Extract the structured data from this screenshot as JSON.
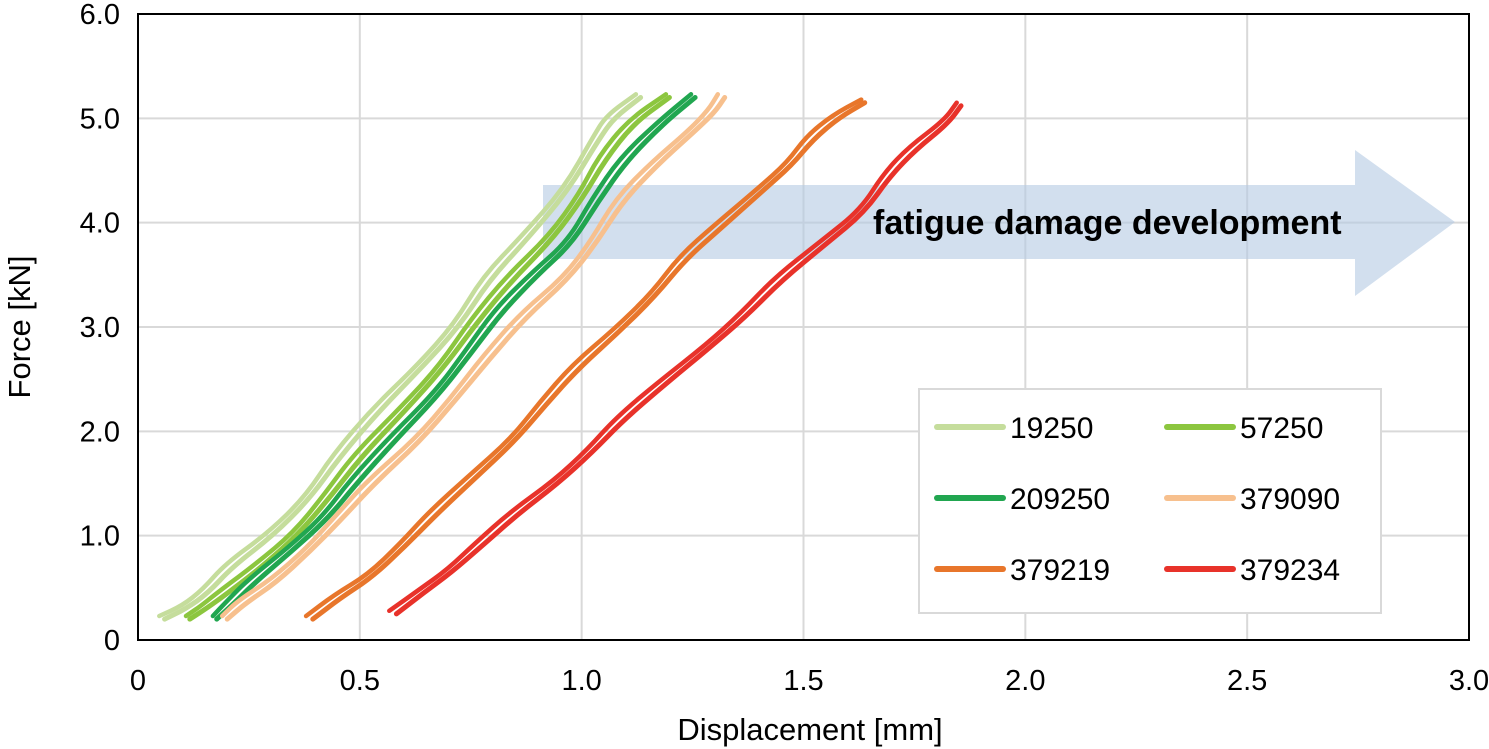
{
  "chart_data": {
    "type": "line",
    "xlabel": "Displacement [mm]",
    "ylabel": "Force [kN]",
    "xlim": [
      0,
      3.0
    ],
    "ylim": [
      0,
      6.0
    ],
    "xticks": [
      "0",
      "0.5",
      "1.0",
      "1.5",
      "2.0",
      "2.5",
      "3.0"
    ],
    "yticks": [
      "0",
      "1.0",
      "2.0",
      "3.0",
      "4.0",
      "5.0",
      "6.0"
    ],
    "grid": true,
    "legend_position": "bottom-right",
    "annotation": "fatigue damage development",
    "series": [
      {
        "name": "19250",
        "color": "#c5dd9c",
        "x": [
          0.06,
          0.1,
          0.16,
          0.22,
          0.3,
          0.38,
          0.46,
          0.55,
          0.63,
          0.72,
          0.8,
          0.88,
          0.96,
          1.04,
          1.08,
          1.13
        ],
        "y": [
          0.2,
          0.3,
          0.45,
          0.7,
          1.0,
          1.35,
          1.75,
          2.2,
          2.6,
          3.0,
          3.45,
          3.85,
          4.3,
          4.8,
          5.0,
          5.2
        ]
      },
      {
        "name": "57250",
        "color": "#8cc63f",
        "x": [
          0.11,
          0.15,
          0.21,
          0.28,
          0.35,
          0.43,
          0.51,
          0.6,
          0.68,
          0.77,
          0.85,
          0.93,
          1.0,
          1.06,
          1.12,
          1.19
        ],
        "y": [
          0.2,
          0.3,
          0.45,
          0.7,
          1.0,
          1.35,
          1.75,
          2.2,
          2.6,
          3.05,
          3.45,
          3.85,
          4.25,
          4.6,
          4.95,
          5.2
        ]
      },
      {
        "name": "209250",
        "color": "#21a650",
        "x": [
          0.17,
          0.22,
          0.27,
          0.34,
          0.42,
          0.5,
          0.58,
          0.67,
          0.75,
          0.83,
          0.9,
          0.97,
          1.04,
          1.11,
          1.18,
          1.25
        ],
        "y": [
          0.2,
          0.35,
          0.55,
          0.85,
          1.15,
          1.5,
          1.9,
          2.35,
          2.75,
          3.15,
          3.5,
          3.8,
          4.2,
          4.6,
          4.95,
          5.2
        ]
      },
      {
        "name": "379090",
        "color": "#f7c08e",
        "x": [
          0.2,
          0.25,
          0.31,
          0.38,
          0.46,
          0.54,
          0.63,
          0.71,
          0.8,
          0.88,
          0.96,
          1.03,
          1.1,
          1.17,
          1.24,
          1.3,
          1.33
        ],
        "y": [
          0.2,
          0.35,
          0.55,
          0.85,
          1.15,
          1.5,
          1.9,
          2.3,
          2.7,
          3.1,
          3.45,
          3.8,
          4.2,
          4.55,
          4.85,
          5.05,
          5.2
        ]
      },
      {
        "name": "379219",
        "color": "#e8762b",
        "x": [
          0.4,
          0.46,
          0.52,
          0.6,
          0.68,
          0.76,
          0.84,
          0.92,
          1.0,
          1.08,
          1.16,
          1.24,
          1.32,
          1.4,
          1.47,
          1.53,
          1.58,
          1.63
        ],
        "y": [
          0.2,
          0.4,
          0.6,
          0.9,
          1.2,
          1.55,
          1.9,
          2.25,
          2.6,
          2.95,
          3.3,
          3.65,
          3.95,
          4.3,
          4.55,
          4.8,
          5.0,
          5.15
        ]
      },
      {
        "name": "379234",
        "color": "#e8322a",
        "x": [
          0.59,
          0.64,
          0.7,
          0.78,
          0.86,
          0.94,
          1.02,
          1.1,
          1.19,
          1.28,
          1.37,
          1.46,
          1.55,
          1.63,
          1.7,
          1.76,
          1.82,
          1.85
        ],
        "y": [
          0.25,
          0.45,
          0.65,
          0.9,
          1.2,
          1.5,
          1.8,
          2.1,
          2.45,
          2.8,
          3.1,
          3.45,
          3.8,
          4.1,
          4.45,
          4.7,
          4.95,
          5.12
        ]
      }
    ]
  }
}
